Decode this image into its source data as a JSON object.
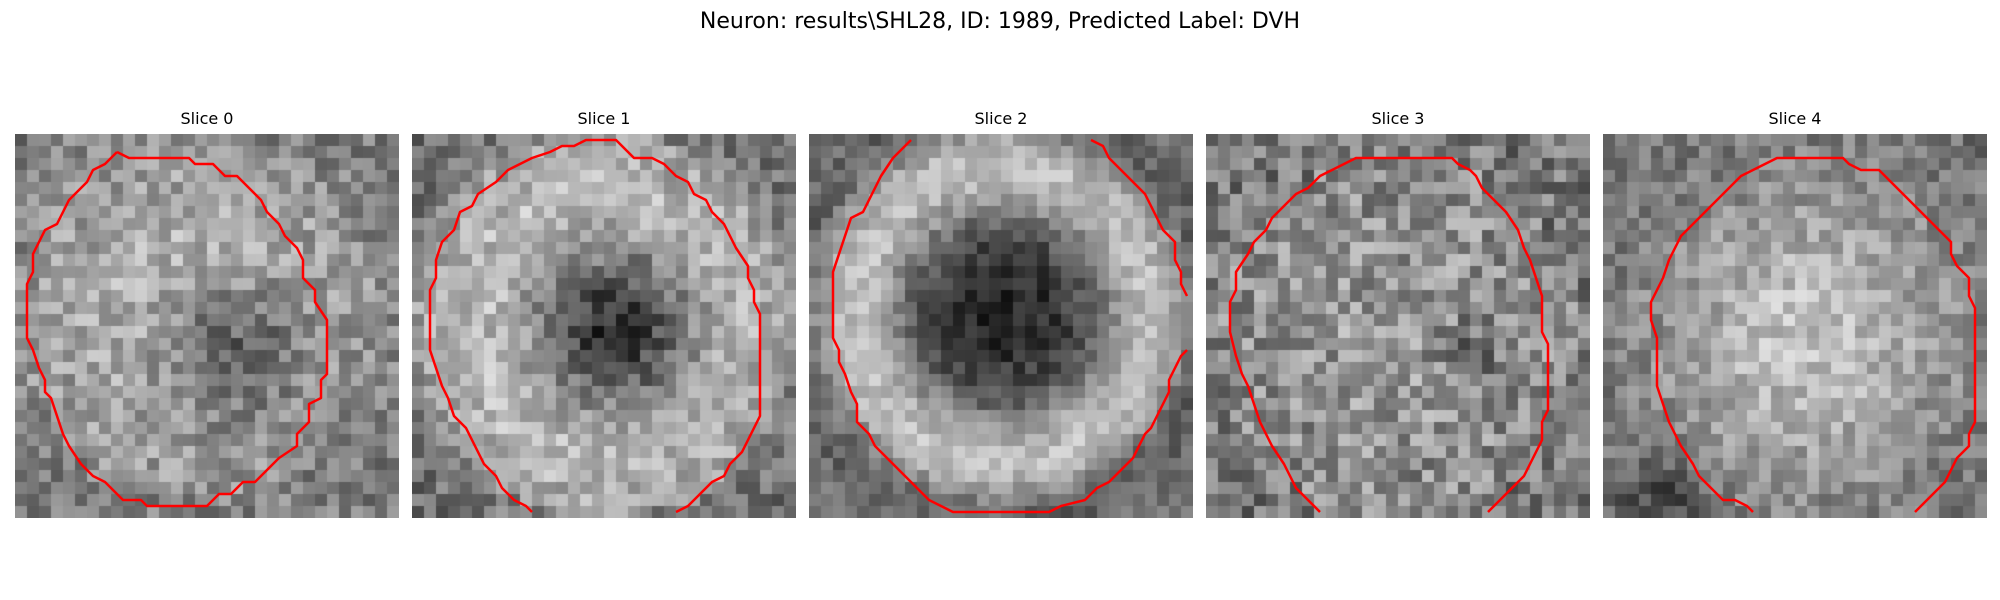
{
  "figure": {
    "title": "Neuron: results\\SHL28, ID: 1989, Predicted Label: DVH"
  },
  "colors": {
    "background": "#ffffff",
    "contour": "#ff0000",
    "colormap": "gray"
  },
  "slices": [
    {
      "title": "Slice 0",
      "contour_color": "#ff0000",
      "center_shape": "dark spot at lower-right of center",
      "contour": "closed outline"
    },
    {
      "title": "Slice 1",
      "contour_color": "#ff0000",
      "center_shape": "dark core at center",
      "contour": "outline open at bottom"
    },
    {
      "title": "Slice 2",
      "contour_color": "#ff0000",
      "center_shape": "bright ring around dark core",
      "contour": "outline open at top-left and top-right"
    },
    {
      "title": "Slice 3",
      "contour_color": "#ff0000",
      "center_shape": "textured gray interior",
      "contour": "outline open at bottom"
    },
    {
      "title": "Slice 4",
      "contour_color": "#ff0000",
      "center_shape": "bright uniform interior",
      "contour": "outline open at bottom"
    }
  ]
}
